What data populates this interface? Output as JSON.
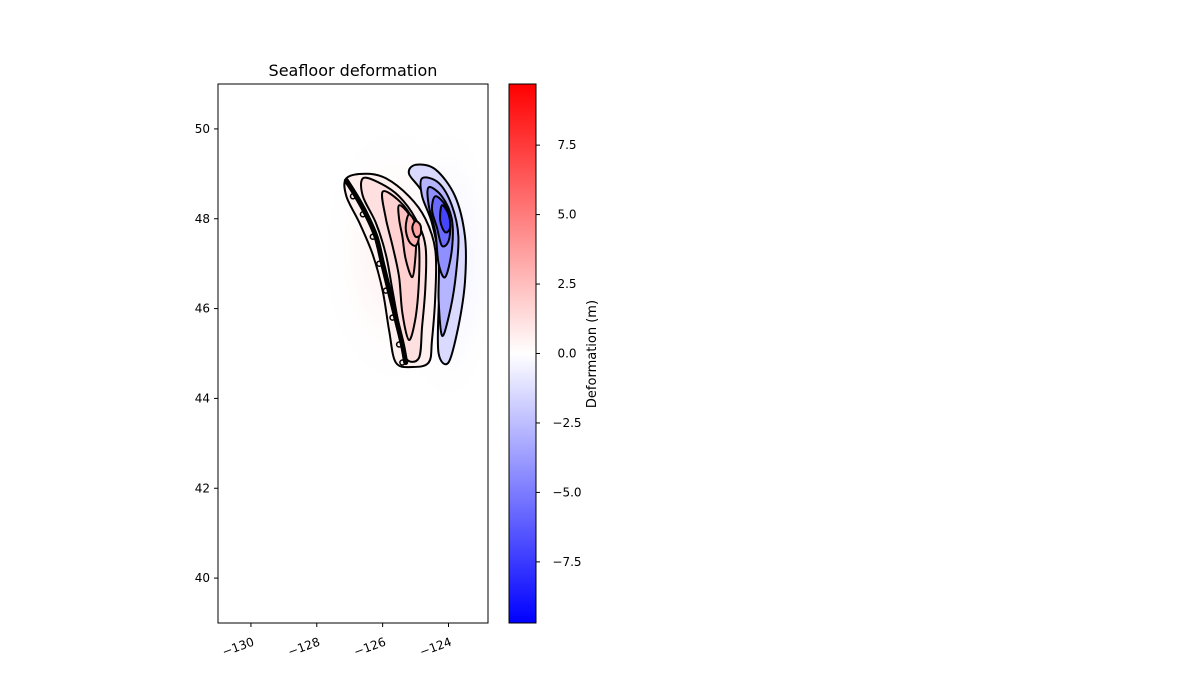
{
  "chart_data": {
    "type": "heatmap",
    "title": "Seafloor deformation",
    "xlabel": "",
    "ylabel": "",
    "xlim": [
      -131,
      -122.8
    ],
    "ylim": [
      39,
      51
    ],
    "x_ticks": [
      -130,
      -128,
      -126,
      -124
    ],
    "x_tick_labels": [
      "−130",
      "−128",
      "−126",
      "−124"
    ],
    "y_ticks": [
      40,
      42,
      44,
      46,
      48,
      50
    ],
    "y_tick_labels": [
      "40",
      "42",
      "44",
      "46",
      "48",
      "50"
    ],
    "grid": false,
    "colorbar": {
      "label": "Deformation (m)",
      "range": [
        -9.7,
        9.7
      ],
      "ticks": [
        7.5,
        5.0,
        2.5,
        0.0,
        -2.5,
        -5.0,
        -7.5
      ],
      "tick_labels": [
        "7.5",
        "5.0",
        "2.5",
        "0.0",
        "−2.5",
        "−5.0",
        "−7.5"
      ],
      "colormap": "bwr",
      "color_low": "#0000ff",
      "color_mid": "#ffffff",
      "color_high": "#ff0000"
    },
    "uplift_peak": {
      "lon": -124.9,
      "lat": 47.8,
      "value": 3.8
    },
    "subsidence_peak": {
      "lon": -123.9,
      "lat": 48.0,
      "value": -7.5
    },
    "uplift_contours": [
      [
        [
          -127.1,
          48.9
        ],
        [
          -126.5,
          49.0
        ],
        [
          -125.9,
          48.9
        ],
        [
          -125.2,
          48.5
        ],
        [
          -124.7,
          48.0
        ],
        [
          -124.4,
          47.3
        ],
        [
          -124.4,
          46.3
        ],
        [
          -124.5,
          45.3
        ],
        [
          -124.6,
          44.8
        ],
        [
          -125.1,
          44.7
        ],
        [
          -125.6,
          44.8
        ],
        [
          -125.8,
          45.5
        ],
        [
          -126.0,
          46.4
        ],
        [
          -126.3,
          47.2
        ],
        [
          -126.7,
          47.9
        ],
        [
          -127.1,
          48.5
        ]
      ],
      [
        [
          -126.6,
          48.9
        ],
        [
          -126.1,
          48.8
        ],
        [
          -125.5,
          48.5
        ],
        [
          -125.0,
          48.0
        ],
        [
          -124.7,
          47.4
        ],
        [
          -124.7,
          46.5
        ],
        [
          -124.8,
          45.6
        ],
        [
          -124.9,
          44.9
        ],
        [
          -125.3,
          44.9
        ],
        [
          -125.5,
          45.6
        ],
        [
          -125.7,
          46.4
        ],
        [
          -125.9,
          47.2
        ],
        [
          -126.2,
          47.9
        ],
        [
          -126.6,
          48.5
        ]
      ],
      [
        [
          -126.0,
          48.6
        ],
        [
          -125.5,
          48.4
        ],
        [
          -125.1,
          48.0
        ],
        [
          -124.9,
          47.4
        ],
        [
          -124.9,
          46.6
        ],
        [
          -125.0,
          45.8
        ],
        [
          -125.2,
          45.3
        ],
        [
          -125.4,
          45.9
        ],
        [
          -125.5,
          46.7
        ],
        [
          -125.7,
          47.4
        ],
        [
          -125.9,
          48.0
        ]
      ],
      [
        [
          -125.5,
          48.3
        ],
        [
          -125.2,
          48.1
        ],
        [
          -125.0,
          47.7
        ],
        [
          -125.0,
          47.2
        ],
        [
          -125.1,
          46.7
        ],
        [
          -125.3,
          47.1
        ],
        [
          -125.4,
          47.6
        ],
        [
          -125.5,
          48.0
        ]
      ],
      [
        [
          -125.2,
          48.1
        ],
        [
          -125.0,
          47.9
        ],
        [
          -124.9,
          47.6
        ],
        [
          -125.0,
          47.4
        ],
        [
          -125.2,
          47.5
        ],
        [
          -125.3,
          47.8
        ]
      ],
      [
        [
          -125.0,
          47.95
        ],
        [
          -124.85,
          47.85
        ],
        [
          -124.85,
          47.65
        ],
        [
          -125.0,
          47.6
        ],
        [
          -125.1,
          47.8
        ]
      ]
    ],
    "subsidence_contours": [
      [
        [
          -125.0,
          49.2
        ],
        [
          -124.4,
          49.1
        ],
        [
          -123.8,
          48.5
        ],
        [
          -123.5,
          47.6
        ],
        [
          -123.5,
          46.6
        ],
        [
          -123.7,
          45.6
        ],
        [
          -124.0,
          44.8
        ],
        [
          -124.3,
          45.0
        ],
        [
          -124.3,
          46.0
        ],
        [
          -124.2,
          47.0
        ],
        [
          -124.4,
          47.9
        ],
        [
          -124.8,
          48.6
        ],
        [
          -125.2,
          49.0
        ]
      ],
      [
        [
          -124.8,
          48.9
        ],
        [
          -124.3,
          48.8
        ],
        [
          -123.9,
          48.3
        ],
        [
          -123.7,
          47.6
        ],
        [
          -123.8,
          46.6
        ],
        [
          -124.0,
          45.8
        ],
        [
          -124.2,
          45.4
        ],
        [
          -124.3,
          46.2
        ],
        [
          -124.3,
          47.1
        ],
        [
          -124.5,
          47.9
        ],
        [
          -124.8,
          48.5
        ]
      ],
      [
        [
          -124.6,
          48.7
        ],
        [
          -124.2,
          48.5
        ],
        [
          -123.9,
          48.0
        ],
        [
          -123.9,
          47.3
        ],
        [
          -124.1,
          46.7
        ],
        [
          -124.3,
          47.0
        ],
        [
          -124.4,
          47.7
        ],
        [
          -124.6,
          48.3
        ]
      ],
      [
        [
          -124.4,
          48.5
        ],
        [
          -124.1,
          48.3
        ],
        [
          -123.95,
          47.9
        ],
        [
          -124.0,
          47.5
        ],
        [
          -124.2,
          47.4
        ],
        [
          -124.35,
          47.8
        ],
        [
          -124.5,
          48.2
        ]
      ],
      [
        [
          -124.2,
          48.3
        ],
        [
          -124.0,
          48.1
        ],
        [
          -123.95,
          47.8
        ],
        [
          -124.1,
          47.7
        ],
        [
          -124.25,
          47.95
        ]
      ]
    ],
    "trench_line": [
      [
        -127.1,
        48.85
      ],
      [
        -126.8,
        48.5
      ],
      [
        -126.5,
        48.1
      ],
      [
        -126.2,
        47.6
      ],
      [
        -126.0,
        47.0
      ],
      [
        -125.8,
        46.4
      ],
      [
        -125.6,
        45.8
      ],
      [
        -125.4,
        45.2
      ],
      [
        -125.3,
        44.8
      ]
    ]
  }
}
